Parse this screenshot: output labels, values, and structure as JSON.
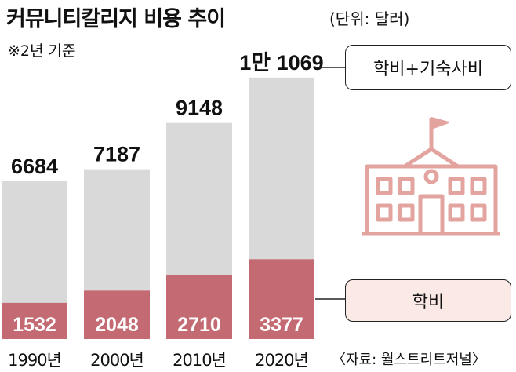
{
  "title": "커뮤니티칼리지 비용 추이",
  "unit": "(단위: 달러)",
  "note": "※2년 기준",
  "source": "〈자료: 월스트리트저널〉",
  "colors": {
    "total": "#d9d9d9",
    "tuition": "#c46a72",
    "icon": "#e3a4a0",
    "legend_tuition_bg": "#fbe9e5"
  },
  "icon": "school-building-icon",
  "chart_data": {
    "type": "bar",
    "stacked": true,
    "categories": [
      "1990년",
      "2000년",
      "2010년",
      "2020년"
    ],
    "series": [
      {
        "name": "학비+기숙사비",
        "values": [
          6684,
          7187,
          9148,
          11069
        ],
        "labels": [
          "6684",
          "7187",
          "9148",
          "1만 1069"
        ]
      },
      {
        "name": "학비",
        "values": [
          1532,
          2048,
          2710,
          3377
        ],
        "labels": [
          "1532",
          "2048",
          "2710",
          "3377"
        ]
      }
    ],
    "grid": false,
    "legend": "right"
  }
}
